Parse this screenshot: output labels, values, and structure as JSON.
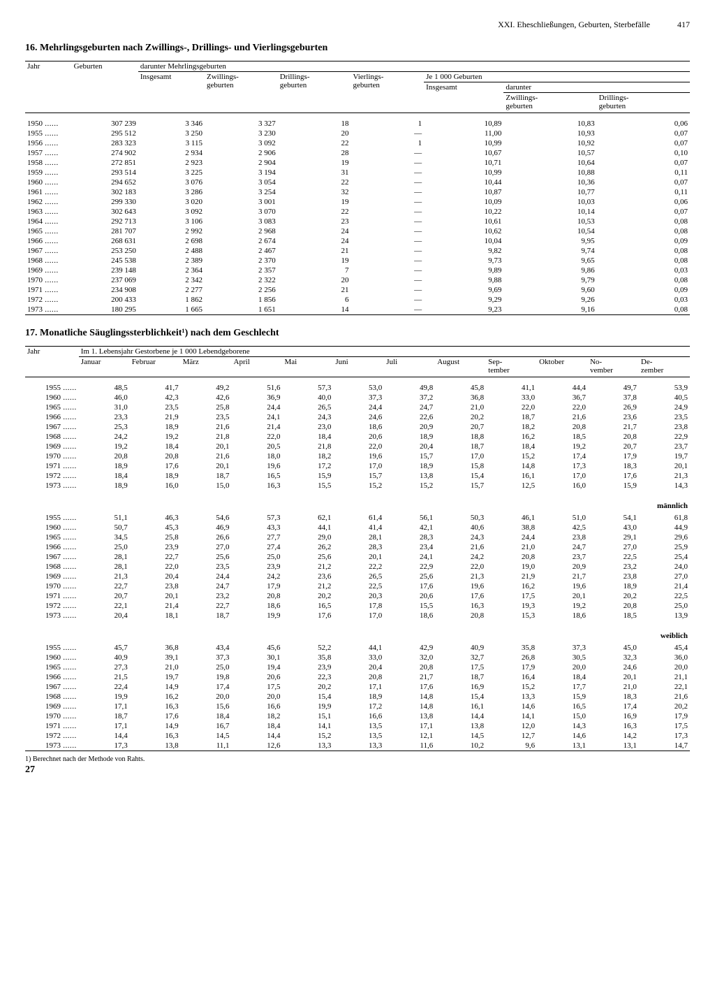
{
  "page": {
    "chapter": "XXI. Eheschließungen, Geburten, Sterbefälle",
    "number": "417",
    "footer": "27"
  },
  "table16": {
    "title": "16. Mehrlingsgeburten nach Zwillings-, Drillings- und Vierlingsgeburten",
    "headers": {
      "jahr": "Jahr",
      "geburten": "Geburten",
      "darunter": "darunter Mehrlingsgeburten",
      "insgesamt": "Insgesamt",
      "zwillinge": "Zwillings-\ngeburten",
      "drillinge": "Drillings-\ngeburten",
      "vierlinge": "Vierlings-\ngeburten",
      "je1000": "Je 1 000 Geburten",
      "insg2": "Insgesamt",
      "dar2": "darunter",
      "zw2": "Zwillings-\ngeburten",
      "dr2": "Drillings-\ngeburten"
    },
    "rows": [
      {
        "y": "1950",
        "g": "307 239",
        "ins": "3 346",
        "zw": "3 327",
        "dr": "18",
        "vi": "1",
        "r1": "10,89",
        "r2": "10,83",
        "r3": "0,06"
      },
      {
        "y": "1955",
        "g": "295 512",
        "ins": "3 250",
        "zw": "3 230",
        "dr": "20",
        "vi": "—",
        "r1": "11,00",
        "r2": "10,93",
        "r3": "0,07"
      },
      {
        "y": "1956",
        "g": "283 323",
        "ins": "3 115",
        "zw": "3 092",
        "dr": "22",
        "vi": "1",
        "r1": "10,99",
        "r2": "10,92",
        "r3": "0,07"
      },
      {
        "y": "1957",
        "g": "274 902",
        "ins": "2 934",
        "zw": "2 906",
        "dr": "28",
        "vi": "—",
        "r1": "10,67",
        "r2": "10,57",
        "r3": "0,10"
      },
      {
        "y": "1958",
        "g": "272 851",
        "ins": "2 923",
        "zw": "2 904",
        "dr": "19",
        "vi": "—",
        "r1": "10,71",
        "r2": "10,64",
        "r3": "0,07"
      },
      {
        "y": "1959",
        "g": "293 514",
        "ins": "3 225",
        "zw": "3 194",
        "dr": "31",
        "vi": "—",
        "r1": "10,99",
        "r2": "10,88",
        "r3": "0,11"
      },
      {
        "y": "1960",
        "g": "294 652",
        "ins": "3 076",
        "zw": "3 054",
        "dr": "22",
        "vi": "—",
        "r1": "10,44",
        "r2": "10,36",
        "r3": "0,07"
      },
      {
        "y": "1961",
        "g": "302 183",
        "ins": "3 286",
        "zw": "3 254",
        "dr": "32",
        "vi": "—",
        "r1": "10,87",
        "r2": "10,77",
        "r3": "0,11"
      },
      {
        "y": "1962",
        "g": "299 330",
        "ins": "3 020",
        "zw": "3 001",
        "dr": "19",
        "vi": "—",
        "r1": "10,09",
        "r2": "10,03",
        "r3": "0,06"
      },
      {
        "y": "1963",
        "g": "302 643",
        "ins": "3 092",
        "zw": "3 070",
        "dr": "22",
        "vi": "—",
        "r1": "10,22",
        "r2": "10,14",
        "r3": "0,07"
      },
      {
        "y": "1964",
        "g": "292 713",
        "ins": "3 106",
        "zw": "3 083",
        "dr": "23",
        "vi": "—",
        "r1": "10,61",
        "r2": "10,53",
        "r3": "0,08"
      },
      {
        "y": "1965",
        "g": "281 707",
        "ins": "2 992",
        "zw": "2 968",
        "dr": "24",
        "vi": "—",
        "r1": "10,62",
        "r2": "10,54",
        "r3": "0,08"
      },
      {
        "y": "1966",
        "g": "268 631",
        "ins": "2 698",
        "zw": "2 674",
        "dr": "24",
        "vi": "—",
        "r1": "10,04",
        "r2": "9,95",
        "r3": "0,09"
      },
      {
        "y": "1967",
        "g": "253 250",
        "ins": "2 488",
        "zw": "2 467",
        "dr": "21",
        "vi": "—",
        "r1": "9,82",
        "r2": "9,74",
        "r3": "0,08"
      },
      {
        "y": "1968",
        "g": "245 538",
        "ins": "2 389",
        "zw": "2 370",
        "dr": "19",
        "vi": "—",
        "r1": "9,73",
        "r2": "9,65",
        "r3": "0,08"
      },
      {
        "y": "1969",
        "g": "239 148",
        "ins": "2 364",
        "zw": "2 357",
        "dr": "7",
        "vi": "—",
        "r1": "9,89",
        "r2": "9,86",
        "r3": "0,03"
      },
      {
        "y": "1970",
        "g": "237 069",
        "ins": "2 342",
        "zw": "2 322",
        "dr": "20",
        "vi": "—",
        "r1": "9,88",
        "r2": "9,79",
        "r3": "0,08"
      },
      {
        "y": "1971",
        "g": "234 908",
        "ins": "2 277",
        "zw": "2 256",
        "dr": "21",
        "vi": "—",
        "r1": "9,69",
        "r2": "9,60",
        "r3": "0,09"
      },
      {
        "y": "1972",
        "g": "200 433",
        "ins": "1 862",
        "zw": "1 856",
        "dr": "6",
        "vi": "—",
        "r1": "9,29",
        "r2": "9,26",
        "r3": "0,03"
      },
      {
        "y": "1973",
        "g": "180 295",
        "ins": "1 665",
        "zw": "1 651",
        "dr": "14",
        "vi": "—",
        "r1": "9,23",
        "r2": "9,16",
        "r3": "0,08"
      }
    ]
  },
  "table17": {
    "title": "17. Monatliche Säuglingssterblichkeit¹) nach dem Geschlecht",
    "headers": {
      "jahr": "Jahr",
      "spanner": "Im 1. Lebensjahr Gestorbene je 1 000 Lebendgeborene",
      "months": [
        "Januar",
        "Februar",
        "März",
        "April",
        "Mai",
        "Juni",
        "Juli",
        "August",
        "Sep-\ntember",
        "Oktober",
        "No-\nvember",
        "De-\nzember"
      ]
    },
    "sections": [
      {
        "label": "",
        "rows": [
          {
            "y": "1955",
            "v": [
              "48,5",
              "41,7",
              "49,2",
              "51,6",
              "57,3",
              "53,0",
              "49,8",
              "45,8",
              "41,1",
              "44,4",
              "49,7",
              "53,9"
            ]
          },
          {
            "y": "1960",
            "v": [
              "46,0",
              "42,3",
              "42,6",
              "36,9",
              "40,0",
              "37,3",
              "37,2",
              "36,8",
              "33,0",
              "36,7",
              "37,8",
              "40,5"
            ]
          },
          {
            "y": "1965",
            "v": [
              "31,0",
              "23,5",
              "25,8",
              "24,4",
              "26,5",
              "24,4",
              "24,7",
              "21,0",
              "22,0",
              "22,0",
              "26,9",
              "24,9"
            ]
          },
          {
            "y": "1966",
            "v": [
              "23,3",
              "21,9",
              "23,5",
              "24,1",
              "24,3",
              "24,6",
              "22,6",
              "20,2",
              "18,7",
              "21,6",
              "23,6",
              "23,5"
            ]
          },
          {
            "y": "1967",
            "v": [
              "25,3",
              "18,9",
              "21,6",
              "21,4",
              "23,0",
              "18,6",
              "20,9",
              "20,7",
              "18,2",
              "20,8",
              "21,7",
              "23,8"
            ]
          },
          {
            "y": "1968",
            "v": [
              "24,2",
              "19,2",
              "21,8",
              "22,0",
              "18,4",
              "20,6",
              "18,9",
              "18,8",
              "16,2",
              "18,5",
              "20,8",
              "22,9"
            ]
          },
          {
            "y": "1969",
            "v": [
              "19,2",
              "18,4",
              "20,1",
              "20,5",
              "21,8",
              "22,0",
              "20,4",
              "18,7",
              "18,4",
              "19,2",
              "20,7",
              "23,7"
            ]
          },
          {
            "y": "1970",
            "v": [
              "20,8",
              "20,8",
              "21,6",
              "18,0",
              "18,2",
              "19,6",
              "15,7",
              "17,0",
              "15,2",
              "17,4",
              "17,9",
              "19,7"
            ]
          },
          {
            "y": "1971",
            "v": [
              "18,9",
              "17,6",
              "20,1",
              "19,6",
              "17,2",
              "17,0",
              "18,9",
              "15,8",
              "14,8",
              "17,3",
              "18,3",
              "20,1"
            ]
          },
          {
            "y": "1972",
            "v": [
              "18,4",
              "18,9",
              "18,7",
              "16,5",
              "15,9",
              "15,7",
              "13,8",
              "15,4",
              "16,1",
              "17,0",
              "17,6",
              "21,3"
            ]
          },
          {
            "y": "1973",
            "v": [
              "18,9",
              "16,0",
              "15,0",
              "16,3",
              "15,5",
              "15,2",
              "15,2",
              "15,7",
              "12,5",
              "16,0",
              "15,9",
              "14,3"
            ]
          }
        ]
      },
      {
        "label": "männlich",
        "rows": [
          {
            "y": "1955",
            "v": [
              "51,1",
              "46,3",
              "54,6",
              "57,3",
              "62,1",
              "61,4",
              "56,1",
              "50,3",
              "46,1",
              "51,0",
              "54,1",
              "61,8"
            ]
          },
          {
            "y": "1960",
            "v": [
              "50,7",
              "45,3",
              "46,9",
              "43,3",
              "44,1",
              "41,4",
              "42,1",
              "40,6",
              "38,8",
              "42,5",
              "43,0",
              "44,9"
            ]
          },
          {
            "y": "1965",
            "v": [
              "34,5",
              "25,8",
              "26,6",
              "27,7",
              "29,0",
              "28,1",
              "28,3",
              "24,3",
              "24,4",
              "23,8",
              "29,1",
              "29,6"
            ]
          },
          {
            "y": "1966",
            "v": [
              "25,0",
              "23,9",
              "27,0",
              "27,4",
              "26,2",
              "28,3",
              "23,4",
              "21,6",
              "21,0",
              "24,7",
              "27,0",
              "25,9"
            ]
          },
          {
            "y": "1967",
            "v": [
              "28,1",
              "22,7",
              "25,6",
              "25,0",
              "25,6",
              "20,1",
              "24,1",
              "24,2",
              "20,8",
              "23,7",
              "22,5",
              "25,4"
            ]
          },
          {
            "y": "1968",
            "v": [
              "28,1",
              "22,0",
              "23,5",
              "23,9",
              "21,2",
              "22,2",
              "22,9",
              "22,0",
              "19,0",
              "20,9",
              "23,2",
              "24,0"
            ]
          },
          {
            "y": "1969",
            "v": [
              "21,3",
              "20,4",
              "24,4",
              "24,2",
              "23,6",
              "26,5",
              "25,6",
              "21,3",
              "21,9",
              "21,7",
              "23,8",
              "27,0"
            ]
          },
          {
            "y": "1970",
            "v": [
              "22,7",
              "23,8",
              "24,7",
              "17,9",
              "21,2",
              "22,5",
              "17,6",
              "19,6",
              "16,2",
              "19,6",
              "18,9",
              "21,4"
            ]
          },
          {
            "y": "1971",
            "v": [
              "20,7",
              "20,1",
              "23,2",
              "20,8",
              "20,2",
              "20,3",
              "20,6",
              "17,6",
              "17,5",
              "20,1",
              "20,2",
              "22,5"
            ]
          },
          {
            "y": "1972",
            "v": [
              "22,1",
              "21,4",
              "22,7",
              "18,6",
              "16,5",
              "17,8",
              "15,5",
              "16,3",
              "19,3",
              "19,2",
              "20,8",
              "25,0"
            ]
          },
          {
            "y": "1973",
            "v": [
              "20,4",
              "18,1",
              "18,7",
              "19,9",
              "17,6",
              "17,0",
              "18,6",
              "20,8",
              "15,3",
              "18,6",
              "18,5",
              "13,9"
            ]
          }
        ]
      },
      {
        "label": "weiblich",
        "rows": [
          {
            "y": "1955",
            "v": [
              "45,7",
              "36,8",
              "43,4",
              "45,6",
              "52,2",
              "44,1",
              "42,9",
              "40,9",
              "35,8",
              "37,3",
              "45,0",
              "45,4"
            ]
          },
          {
            "y": "1960",
            "v": [
              "40,9",
              "39,1",
              "37,3",
              "30,1",
              "35,8",
              "33,0",
              "32,0",
              "32,7",
              "26,8",
              "30,5",
              "32,3",
              "36,0"
            ]
          },
          {
            "y": "1965",
            "v": [
              "27,3",
              "21,0",
              "25,0",
              "19,4",
              "23,9",
              "20,4",
              "20,8",
              "17,5",
              "17,9",
              "20,0",
              "24,6",
              "20,0"
            ]
          },
          {
            "y": "1966",
            "v": [
              "21,5",
              "19,7",
              "19,8",
              "20,6",
              "22,3",
              "20,8",
              "21,7",
              "18,7",
              "16,4",
              "18,4",
              "20,1",
              "21,1"
            ]
          },
          {
            "y": "1967",
            "v": [
              "22,4",
              "14,9",
              "17,4",
              "17,5",
              "20,2",
              "17,1",
              "17,6",
              "16,9",
              "15,2",
              "17,7",
              "21,0",
              "22,1"
            ]
          },
          {
            "y": "1968",
            "v": [
              "19,9",
              "16,2",
              "20,0",
              "20,0",
              "15,4",
              "18,9",
              "14,8",
              "15,4",
              "13,3",
              "15,9",
              "18,3",
              "21,6"
            ]
          },
          {
            "y": "1969",
            "v": [
              "17,1",
              "16,3",
              "15,6",
              "16,6",
              "19,9",
              "17,2",
              "14,8",
              "16,1",
              "14,6",
              "16,5",
              "17,4",
              "20,2"
            ]
          },
          {
            "y": "1970",
            "v": [
              "18,7",
              "17,6",
              "18,4",
              "18,2",
              "15,1",
              "16,6",
              "13,8",
              "14,4",
              "14,1",
              "15,0",
              "16,9",
              "17,9"
            ]
          },
          {
            "y": "1971",
            "v": [
              "17,1",
              "14,9",
              "16,7",
              "18,4",
              "14,1",
              "13,5",
              "17,1",
              "13,8",
              "12,0",
              "14,3",
              "16,3",
              "17,5"
            ]
          },
          {
            "y": "1972",
            "v": [
              "14,4",
              "16,3",
              "14,5",
              "14,4",
              "15,2",
              "13,5",
              "12,1",
              "14,5",
              "12,7",
              "14,6",
              "14,2",
              "17,3"
            ]
          },
          {
            "y": "1973",
            "v": [
              "17,3",
              "13,8",
              "11,1",
              "12,6",
              "13,3",
              "13,3",
              "11,6",
              "10,2",
              "9,6",
              "13,1",
              "13,1",
              "14,7"
            ]
          }
        ]
      }
    ],
    "footnote": "1) Berechnet nach der Methode von Rahts."
  }
}
